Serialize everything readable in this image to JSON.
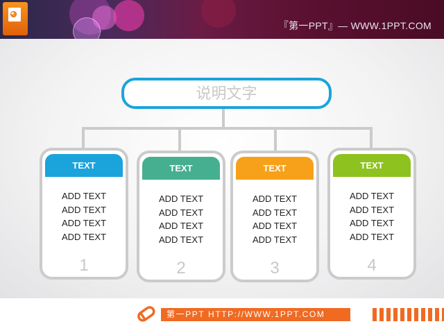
{
  "header": {
    "site_text": "『第一PPT』— WWW.1PPT.COM",
    "logo_icon": "powerpoint-icon"
  },
  "diagram": {
    "title": "说明文字",
    "cards": [
      {
        "title": "TEXT",
        "color": "#1ba3dc",
        "items": [
          "ADD TEXT",
          "ADD TEXT",
          "ADD TEXT",
          "ADD TEXT"
        ],
        "number": "1"
      },
      {
        "title": "TEXT",
        "color": "#45af8f",
        "items": [
          "ADD TEXT",
          "ADD TEXT",
          "ADD TEXT",
          "ADD TEXT"
        ],
        "number": "2"
      },
      {
        "title": "TEXT",
        "color": "#f7a11a",
        "items": [
          "ADD TEXT",
          "ADD TEXT",
          "ADD TEXT",
          "ADD TEXT"
        ],
        "number": "3"
      },
      {
        "title": "TEXT",
        "color": "#8dc21f",
        "items": [
          "ADD TEXT",
          "ADD TEXT",
          "ADD TEXT",
          "ADD TEXT"
        ],
        "number": "4"
      }
    ]
  },
  "footer": {
    "text": "第一PPT HTTP://WWW.1PPT.COM",
    "icon": "pencil-icon",
    "accent": "#f06a22"
  }
}
